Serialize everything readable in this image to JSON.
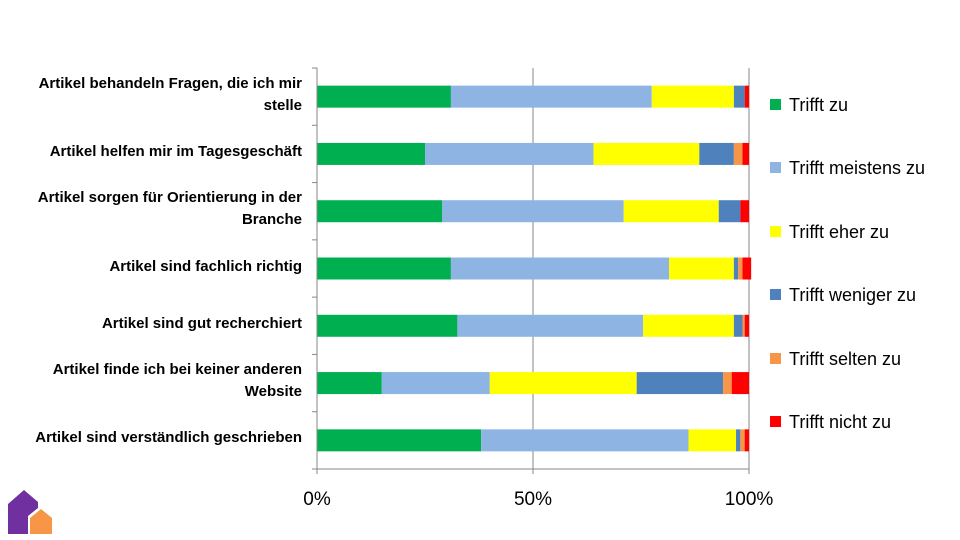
{
  "chart_data": {
    "type": "bar",
    "orientation": "horizontal",
    "stacked": "percent",
    "title": "",
    "xlabel": "",
    "ylabel": "",
    "xlim": [
      0,
      100
    ],
    "x_ticks": [
      "0%",
      "50%",
      "100%"
    ],
    "grid": "vertical lines at 50% and 100%",
    "legend_position": "right",
    "categories": [
      "Artikel behandeln Fragen, die ich mir stelle",
      "Artikel helfen mir im Tagesgeschäft",
      "Artikel sorgen für Orientierung in der Branche",
      "Artikel sind fachlich richtig",
      "Artikel sind gut recherchiert",
      "Artikel finde ich bei keiner anderen Website",
      "Artikel sind verständlich geschrieben"
    ],
    "category_lines": [
      [
        "Artikel behandeln Fragen, die ich mir",
        "stelle"
      ],
      [
        "Artikel helfen mir im Tagesgeschäft"
      ],
      [
        "Artikel sorgen für Orientierung in der",
        "Branche"
      ],
      [
        "Artikel sind fachlich richtig"
      ],
      [
        "Artikel sind gut recherchiert"
      ],
      [
        "Artikel finde ich bei keiner anderen",
        "Website"
      ],
      [
        "Artikel sind verständlich geschrieben"
      ]
    ],
    "series": [
      {
        "name": "Trifft zu",
        "color": "#00b050",
        "values": [
          31,
          25,
          29,
          31,
          32.5,
          15,
          38
        ]
      },
      {
        "name": "Trifft meistens zu",
        "color": "#8db4e2",
        "values": [
          46.5,
          39,
          42,
          50.5,
          43,
          25,
          48
        ]
      },
      {
        "name": "Trifft eher zu",
        "color": "#ffff00",
        "values": [
          19,
          24.5,
          22,
          15,
          21,
          34,
          11
        ]
      },
      {
        "name": "Trifft weniger zu",
        "color": "#4f81bd",
        "values": [
          2.5,
          8,
          5,
          1,
          2,
          20,
          1
        ]
      },
      {
        "name": "Trifft selten zu",
        "color": "#f79646",
        "values": [
          0,
          2,
          0,
          1,
          0.5,
          2,
          1
        ]
      },
      {
        "name": "Trifft nicht zu",
        "color": "#ff0000",
        "values": [
          1,
          1.5,
          2,
          2,
          1,
          4,
          1
        ]
      }
    ]
  },
  "logo": {
    "name": "house-logo",
    "colors": [
      "#7030a0",
      "#f79646"
    ]
  }
}
